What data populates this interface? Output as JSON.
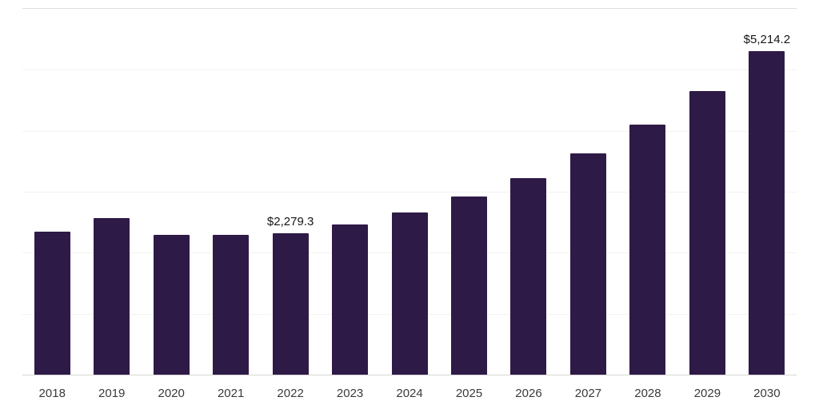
{
  "chart_data": {
    "type": "bar",
    "title": "",
    "xlabel": "",
    "ylabel": "",
    "categories": [
      "2018",
      "2019",
      "2020",
      "2021",
      "2022",
      "2023",
      "2024",
      "2025",
      "2026",
      "2027",
      "2028",
      "2029",
      "2030"
    ],
    "values": [
      2300,
      2520,
      2260,
      2250,
      2279.3,
      2420,
      2610,
      2870,
      3170,
      3570,
      4030,
      4570,
      5214.2
    ],
    "value_labels": {
      "2022": "$2,279.3",
      "2030": "$5,214.2"
    },
    "ylim": [
      0,
      5900
    ],
    "grid": true,
    "gridline_intervals": 6,
    "legend": false,
    "bar_color": "#2e1a47",
    "background_color": "#ffffff"
  }
}
